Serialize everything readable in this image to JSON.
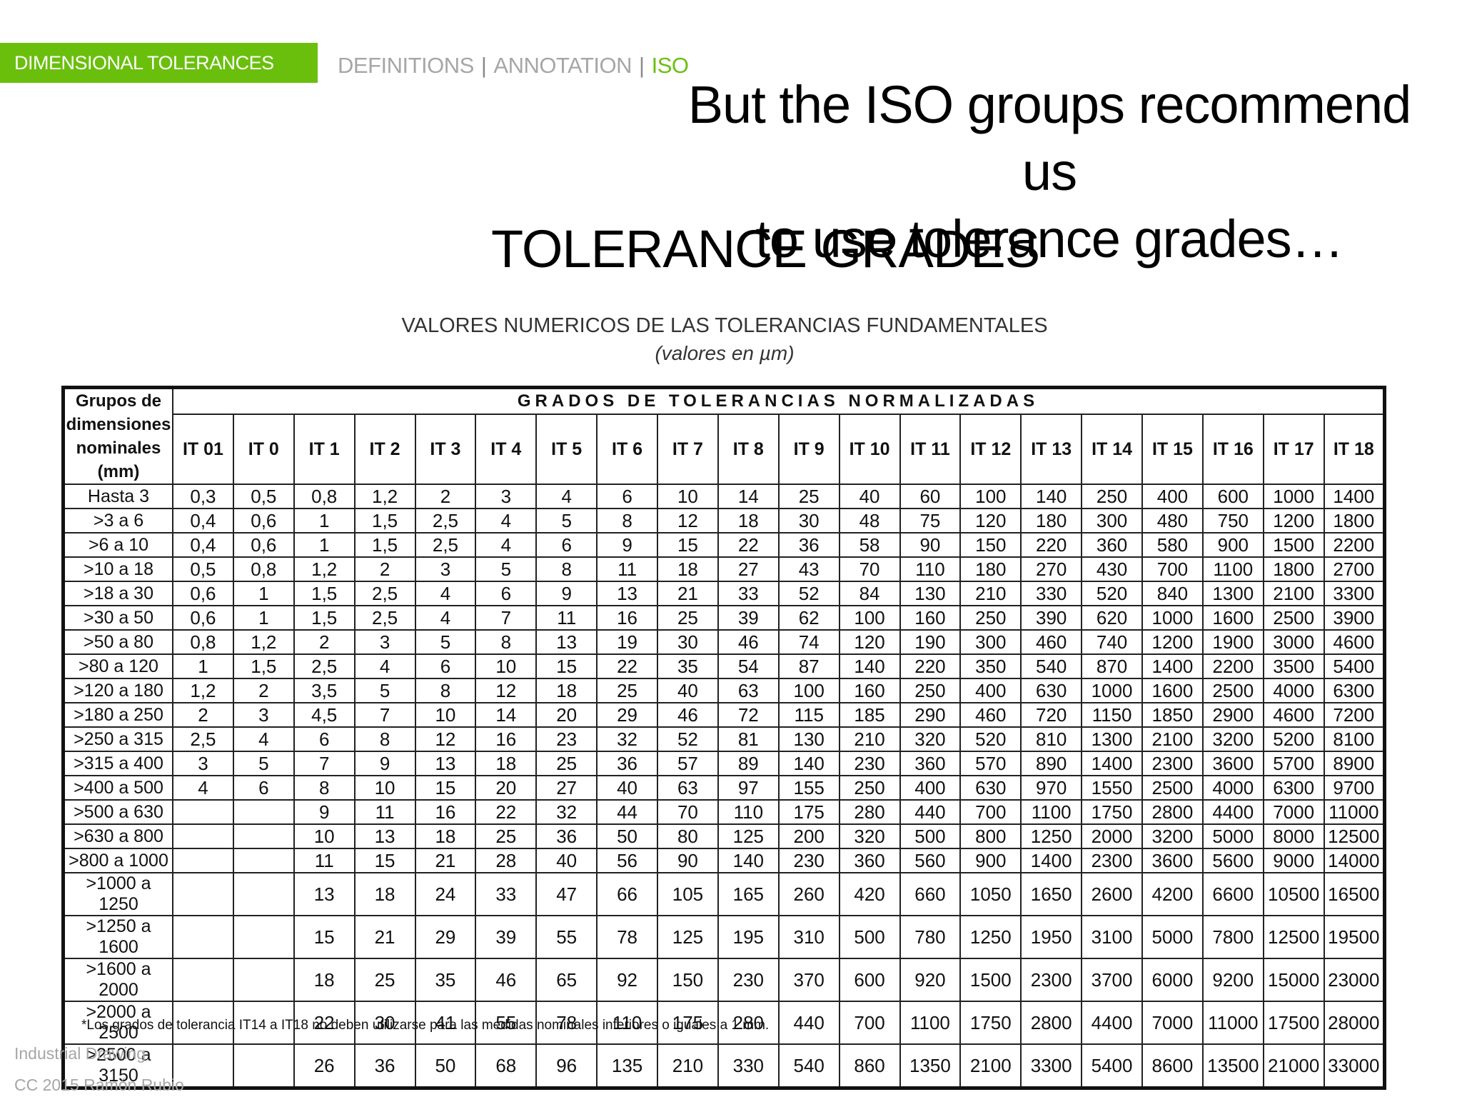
{
  "header": {
    "section_label": "DIMENSIONAL TOLERANCES",
    "nav": [
      "DEFINITIONS",
      "ANNOTATION",
      "ISO"
    ],
    "nav_active_index": 2
  },
  "headline": {
    "line1": "But the ISO groups recommend us",
    "line2": "to use tolerance grades…"
  },
  "slide_title": "TOLERANCE GRADES",
  "table": {
    "caption": "VALORES NUMERICOS DE LAS TOLERANCIAS FUNDAMENTALES",
    "caption_sub": "(valores en µm)",
    "group_header_lines": [
      "Grupos de",
      "dimensiones",
      "nominales",
      "(mm)"
    ],
    "super_header": "GRADOS DE TOLERANCIAS NORMALIZADAS",
    "grades": [
      "IT 01",
      "IT 0",
      "IT 1",
      "IT 2",
      "IT 3",
      "IT 4",
      "IT 5",
      "IT 6",
      "IT 7",
      "IT 8",
      "IT 9",
      "IT 10",
      "IT 11",
      "IT 12",
      "IT 13",
      "IT 14",
      "IT 15",
      "IT 16",
      "IT 17",
      "IT 18"
    ],
    "rows": [
      {
        "dim": "Hasta 3",
        "values": [
          "0,3",
          "0,5",
          "0,8",
          "1,2",
          "2",
          "3",
          "4",
          "6",
          "10",
          "14",
          "25",
          "40",
          "60",
          "100",
          "140",
          "250",
          "400",
          "600",
          "1000",
          "1400"
        ]
      },
      {
        "dim": ">3 a 6",
        "values": [
          "0,4",
          "0,6",
          "1",
          "1,5",
          "2,5",
          "4",
          "5",
          "8",
          "12",
          "18",
          "30",
          "48",
          "75",
          "120",
          "180",
          "300",
          "480",
          "750",
          "1200",
          "1800"
        ]
      },
      {
        "dim": ">6 a 10",
        "values": [
          "0,4",
          "0,6",
          "1",
          "1,5",
          "2,5",
          "4",
          "6",
          "9",
          "15",
          "22",
          "36",
          "58",
          "90",
          "150",
          "220",
          "360",
          "580",
          "900",
          "1500",
          "2200"
        ]
      },
      {
        "dim": ">10 a 18",
        "values": [
          "0,5",
          "0,8",
          "1,2",
          "2",
          "3",
          "5",
          "8",
          "11",
          "18",
          "27",
          "43",
          "70",
          "110",
          "180",
          "270",
          "430",
          "700",
          "1100",
          "1800",
          "2700"
        ]
      },
      {
        "dim": ">18 a 30",
        "values": [
          "0,6",
          "1",
          "1,5",
          "2,5",
          "4",
          "6",
          "9",
          "13",
          "21",
          "33",
          "52",
          "84",
          "130",
          "210",
          "330",
          "520",
          "840",
          "1300",
          "2100",
          "3300"
        ]
      },
      {
        "dim": ">30 a 50",
        "values": [
          "0,6",
          "1",
          "1,5",
          "2,5",
          "4",
          "7",
          "11",
          "16",
          "25",
          "39",
          "62",
          "100",
          "160",
          "250",
          "390",
          "620",
          "1000",
          "1600",
          "2500",
          "3900"
        ]
      },
      {
        "dim": ">50 a 80",
        "values": [
          "0,8",
          "1,2",
          "2",
          "3",
          "5",
          "8",
          "13",
          "19",
          "30",
          "46",
          "74",
          "120",
          "190",
          "300",
          "460",
          "740",
          "1200",
          "1900",
          "3000",
          "4600"
        ]
      },
      {
        "dim": ">80 a 120",
        "values": [
          "1",
          "1,5",
          "2,5",
          "4",
          "6",
          "10",
          "15",
          "22",
          "35",
          "54",
          "87",
          "140",
          "220",
          "350",
          "540",
          "870",
          "1400",
          "2200",
          "3500",
          "5400"
        ]
      },
      {
        "dim": ">120 a 180",
        "values": [
          "1,2",
          "2",
          "3,5",
          "5",
          "8",
          "12",
          "18",
          "25",
          "40",
          "63",
          "100",
          "160",
          "250",
          "400",
          "630",
          "1000",
          "1600",
          "2500",
          "4000",
          "6300"
        ]
      },
      {
        "dim": ">180 a 250",
        "values": [
          "2",
          "3",
          "4,5",
          "7",
          "10",
          "14",
          "20",
          "29",
          "46",
          "72",
          "115",
          "185",
          "290",
          "460",
          "720",
          "1150",
          "1850",
          "2900",
          "4600",
          "7200"
        ]
      },
      {
        "dim": ">250 a 315",
        "values": [
          "2,5",
          "4",
          "6",
          "8",
          "12",
          "16",
          "23",
          "32",
          "52",
          "81",
          "130",
          "210",
          "320",
          "520",
          "810",
          "1300",
          "2100",
          "3200",
          "5200",
          "8100"
        ]
      },
      {
        "dim": ">315 a 400",
        "values": [
          "3",
          "5",
          "7",
          "9",
          "13",
          "18",
          "25",
          "36",
          "57",
          "89",
          "140",
          "230",
          "360",
          "570",
          "890",
          "1400",
          "2300",
          "3600",
          "5700",
          "8900"
        ]
      },
      {
        "dim": ">400 a 500",
        "values": [
          "4",
          "6",
          "8",
          "10",
          "15",
          "20",
          "27",
          "40",
          "63",
          "97",
          "155",
          "250",
          "400",
          "630",
          "970",
          "1550",
          "2500",
          "4000",
          "6300",
          "9700"
        ]
      },
      {
        "dim": ">500 a 630",
        "values": [
          "",
          "",
          "9",
          "11",
          "16",
          "22",
          "32",
          "44",
          "70",
          "110",
          "175",
          "280",
          "440",
          "700",
          "1100",
          "1750",
          "2800",
          "4400",
          "7000",
          "11000"
        ]
      },
      {
        "dim": ">630 a 800",
        "values": [
          "",
          "",
          "10",
          "13",
          "18",
          "25",
          "36",
          "50",
          "80",
          "125",
          "200",
          "320",
          "500",
          "800",
          "1250",
          "2000",
          "3200",
          "5000",
          "8000",
          "12500"
        ]
      },
      {
        "dim": ">800 a 1000",
        "values": [
          "",
          "",
          "11",
          "15",
          "21",
          "28",
          "40",
          "56",
          "90",
          "140",
          "230",
          "360",
          "560",
          "900",
          "1400",
          "2300",
          "3600",
          "5600",
          "9000",
          "14000"
        ]
      },
      {
        "dim": ">1000 a 1250",
        "values": [
          "",
          "",
          "13",
          "18",
          "24",
          "33",
          "47",
          "66",
          "105",
          "165",
          "260",
          "420",
          "660",
          "1050",
          "1650",
          "2600",
          "4200",
          "6600",
          "10500",
          "16500"
        ]
      },
      {
        "dim": ">1250 a 1600",
        "values": [
          "",
          "",
          "15",
          "21",
          "29",
          "39",
          "55",
          "78",
          "125",
          "195",
          "310",
          "500",
          "780",
          "1250",
          "1950",
          "3100",
          "5000",
          "7800",
          "12500",
          "19500"
        ]
      },
      {
        "dim": ">1600 a 2000",
        "values": [
          "",
          "",
          "18",
          "25",
          "35",
          "46",
          "65",
          "92",
          "150",
          "230",
          "370",
          "600",
          "920",
          "1500",
          "2300",
          "3700",
          "6000",
          "9200",
          "15000",
          "23000"
        ]
      },
      {
        "dim": ">2000 a 2500",
        "values": [
          "",
          "",
          "22",
          "30",
          "41",
          "55",
          "78",
          "110",
          "175",
          "280",
          "440",
          "700",
          "1100",
          "1750",
          "2800",
          "4400",
          "7000",
          "11000",
          "17500",
          "28000"
        ]
      },
      {
        "dim": ">2500 a 3150",
        "values": [
          "",
          "",
          "26",
          "36",
          "50",
          "68",
          "96",
          "135",
          "210",
          "330",
          "540",
          "860",
          "1350",
          "2100",
          "3300",
          "5400",
          "8600",
          "13500",
          "21000",
          "33000"
        ]
      }
    ],
    "footnote": "*Los grados de tolerancia IT14 a IT18 no deben utilizarse para las medidas nominales inferiores o iguales a 1 mm."
  },
  "footer": {
    "line1": "Industrial Drawing",
    "line2": "CC 2015 Ramón Rubio"
  },
  "colors": {
    "accent": "#6abf0d",
    "nav_inactive": "#a6a6a6"
  }
}
